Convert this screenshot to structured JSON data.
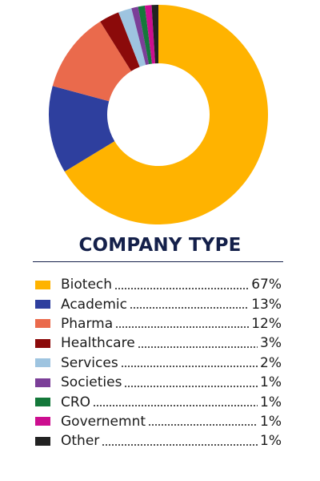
{
  "chart_data": {
    "type": "pie",
    "title": "COMPANY TYPE",
    "categories": [
      "Biotech",
      "Academic",
      "Pharma",
      "Healthcare",
      "Services",
      "Societies",
      "CRO",
      "Governemnt",
      "Other"
    ],
    "values": [
      67,
      13,
      12,
      3,
      2,
      1,
      1,
      1,
      1
    ],
    "value_labels": [
      "67%",
      "13%",
      "12%",
      "3%",
      "2%",
      "1%",
      "1%",
      "1%",
      "1%"
    ],
    "colors": [
      "#ffb300",
      "#2e3f9e",
      "#ea6a4c",
      "#8b0a0a",
      "#9ec4e0",
      "#7b3f98",
      "#14783a",
      "#cc0e8f",
      "#222222"
    ],
    "donut": true,
    "start": "top",
    "direction": "clockwise",
    "legend_position": "bottom"
  }
}
